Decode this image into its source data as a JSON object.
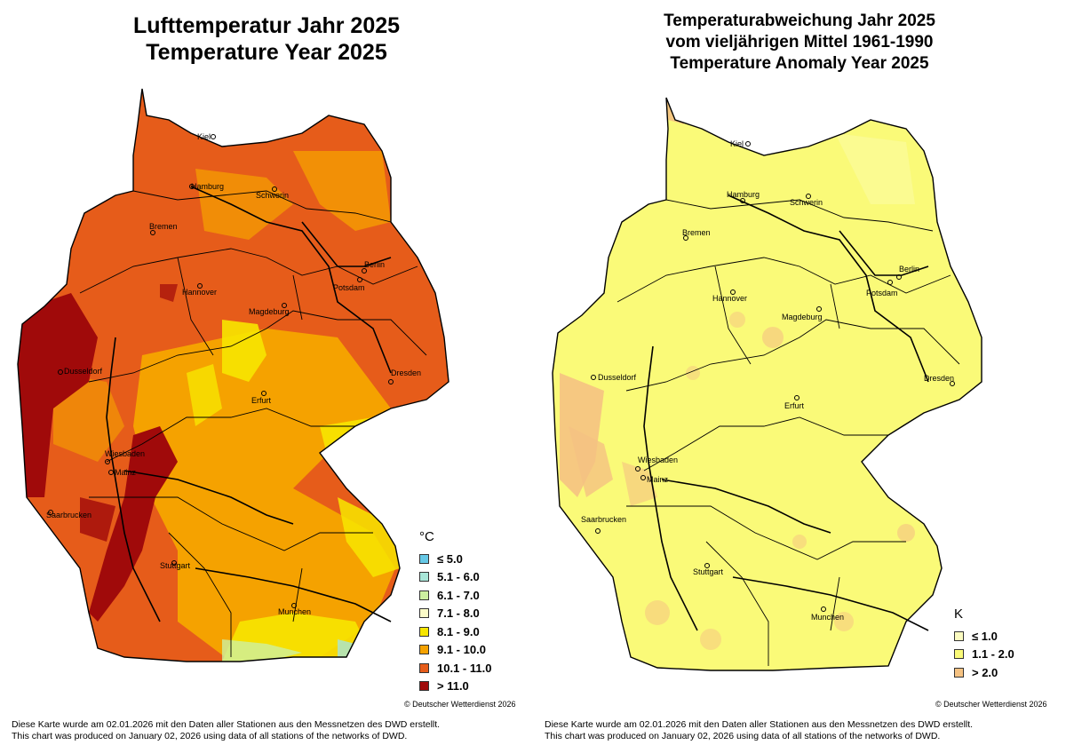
{
  "left_map": {
    "title_line1": "Lufttemperatur Jahr 2025",
    "title_line2": "Temperature Year 2025",
    "legend_unit": "°C",
    "legend": [
      {
        "label": "≤  5.0",
        "color": "#66c8e6"
      },
      {
        "label": "5.1 - 6.0",
        "color": "#a8e6d8"
      },
      {
        "label": "6.1 - 7.0",
        "color": "#cdf0a0"
      },
      {
        "label": "7.1 - 8.0",
        "color": "#fbfbc8"
      },
      {
        "label": "8.1 - 9.0",
        "color": "#f7e600"
      },
      {
        "label": "9.1 - 10.0",
        "color": "#f5a200"
      },
      {
        "label": "10.1 - 11.0",
        "color": "#e65c1a"
      },
      {
        "label": "> 11.0",
        "color": "#a00a0a"
      }
    ],
    "copyright": "© Deutscher Wetterdienst 2026",
    "footnote_de": "Diese Karte wurde am 02.01.2026 mit den Daten aller Stationen aus den Messnetzen des DWD erstellt.",
    "footnote_en": "This chart was produced on January 02, 2026 using data of all stations of the networks of DWD."
  },
  "right_map": {
    "title_line1": "Temperaturabweichung Jahr 2025",
    "title_line2": "vom vieljährigen Mittel 1961-1990",
    "title_line3": "Temperature Anomaly Year 2025",
    "legend_unit": "K",
    "legend": [
      {
        "label": "≤  1.0",
        "color": "#fbfbc0"
      },
      {
        "label": "1.1 - 2.0",
        "color": "#fafa78"
      },
      {
        "label": "> 2.0",
        "color": "#f5c282"
      }
    ],
    "copyright": "© Deutscher Wetterdienst 2026",
    "footnote_de": "Diese Karte wurde am 02.01.2026 mit den Daten aller Stationen aus den Messnetzen des DWD erstellt.",
    "footnote_en": "This chart was produced on January 02, 2026 using data of all stations of the networks of DWD."
  },
  "cities": {
    "kiel": "Kiel",
    "hamburg": "Hamburg",
    "schwerin": "Schwerin",
    "bremen": "Bremen",
    "berlin": "Berlin",
    "hannover": "Hannover",
    "potsdam": "Potsdam",
    "magdeburg": "Magdeburg",
    "dusseldorf": "Dusseldorf",
    "dresden": "Dresden",
    "erfurt": "Erfurt",
    "wiesbaden": "Wiesbaden",
    "mainz": "Mainz",
    "saarbrucken": "Saarbrucken",
    "stuttgart": "Stuttgart",
    "munchen": "Munchen"
  }
}
